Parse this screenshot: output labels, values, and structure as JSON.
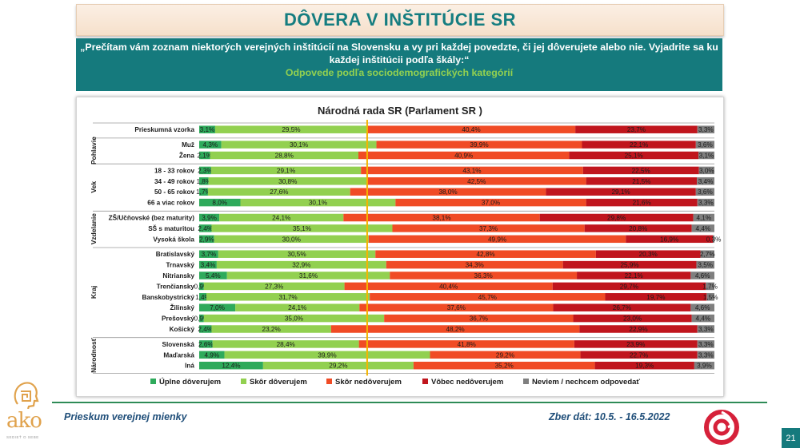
{
  "header": {
    "title": "DÔVERA V INŠTITÚCIE SR",
    "question": "„Prečítam vám zoznam niektorých verejných inštitúcií na Slovensku a vy pri každej povedzte, či jej dôverujete alebo nie. Vyjadrite sa ku každej inštitúcii podľa škály:“",
    "subtitle": "Odpovede podľa sociodemografických kategórií"
  },
  "footer": {
    "left": "Prieskum verejnej mienky",
    "right": "Zber dát: 10.5. - 16.5.2022",
    "page": "21"
  },
  "logos": {
    "ako_word": "ako",
    "ako_tagline": "SEDIEŤ O SEBE"
  },
  "colors": {
    "uplne_doverujem": "#2eaa5b",
    "skor_doverujem": "#92d050",
    "skor_nedoverujem": "#f04b25",
    "vobec_nedoverujem": "#c0151d",
    "neviem": "#7f7f7f",
    "reference_line": "#f4b400",
    "brand_teal": "#157a7d"
  },
  "chart_data": {
    "type": "bar",
    "orientation": "horizontal",
    "stacked": true,
    "title": "Národná rada SR (Parlament SR )",
    "xlim": [
      0,
      100
    ],
    "legend_position": "bottom",
    "series": [
      {
        "name": "Úplne dôverujem",
        "color": "#2eaa5b"
      },
      {
        "name": "Skôr dôverujem",
        "color": "#92d050"
      },
      {
        "name": "Skôr nedôverujem",
        "color": "#f04b25"
      },
      {
        "name": "Vôbec nedôverujem",
        "color": "#c0151d"
      },
      {
        "name": "Neviem / nechcem odpovedať",
        "color": "#7f7f7f"
      }
    ],
    "groups": [
      {
        "name": "",
        "rows": [
          {
            "label": "Prieskumná vzorka",
            "values": [
              3.1,
              29.5,
              40.4,
              23.7,
              3.3
            ]
          }
        ]
      },
      {
        "name": "Pohlavie",
        "rows": [
          {
            "label": "Muž",
            "values": [
              4.3,
              30.1,
              39.9,
              22.1,
              3.6
            ]
          },
          {
            "label": "Žena",
            "values": [
              2.1,
              28.8,
              40.9,
              25.1,
              3.1
            ]
          }
        ]
      },
      {
        "name": "Vek",
        "rows": [
          {
            "label": "18 - 33 rokov",
            "values": [
              2.3,
              29.1,
              43.1,
              22.5,
              3.0
            ]
          },
          {
            "label": "34 - 49 rokov",
            "values": [
              1.8,
              30.8,
              42.5,
              21.5,
              3.4
            ]
          },
          {
            "label": "50 - 65 rokov",
            "values": [
              1.7,
              27.6,
              38.0,
              29.1,
              3.6
            ]
          },
          {
            "label": "66 a viac rokov",
            "values": [
              8.0,
              30.1,
              37.0,
              21.6,
              3.3
            ]
          }
        ]
      },
      {
        "name": "Vzdelanie",
        "rows": [
          {
            "label": "ZŠ/Učňovské (bez maturity)",
            "values": [
              3.9,
              24.1,
              38.1,
              29.8,
              4.1
            ]
          },
          {
            "label": "SŠ s maturitou",
            "values": [
              2.4,
              35.1,
              37.3,
              20.8,
              4.4
            ]
          },
          {
            "label": "Vysoká škola",
            "values": [
              2.9,
              30.0,
              49.9,
              16.9,
              0.3
            ]
          }
        ]
      },
      {
        "name": "Kraj",
        "rows": [
          {
            "label": "Bratislavský",
            "values": [
              3.7,
              30.5,
              42.8,
              20.3,
              2.7
            ]
          },
          {
            "label": "Trnavský",
            "values": [
              3.4,
              32.9,
              34.3,
              25.9,
              3.5
            ]
          },
          {
            "label": "Nitriansky",
            "values": [
              5.4,
              31.6,
              36.3,
              22.1,
              4.6
            ]
          },
          {
            "label": "Trenčiansky",
            "values": [
              0.9,
              27.3,
              40.4,
              29.7,
              1.7
            ]
          },
          {
            "label": "Banskobystrický",
            "values": [
              1.4,
              31.7,
              45.7,
              19.7,
              1.5
            ]
          },
          {
            "label": "Žilinský",
            "values": [
              7.0,
              24.1,
              37.6,
              26.7,
              4.6
            ]
          },
          {
            "label": "Prešovský",
            "values": [
              0.9,
              35.0,
              36.7,
              23.0,
              4.4
            ]
          },
          {
            "label": "Košický",
            "values": [
              2.4,
              23.2,
              48.2,
              22.9,
              3.3
            ]
          }
        ]
      },
      {
        "name": "Národnosť",
        "rows": [
          {
            "label": "Slovenská",
            "values": [
              2.6,
              28.4,
              41.8,
              23.9,
              3.3
            ]
          },
          {
            "label": "Maďarská",
            "values": [
              4.9,
              39.9,
              29.2,
              22.7,
              3.3
            ]
          },
          {
            "label": "Iná",
            "values": [
              12.4,
              29.2,
              35.2,
              19.3,
              3.9
            ]
          }
        ]
      }
    ],
    "reference_line_value": 32.6
  }
}
